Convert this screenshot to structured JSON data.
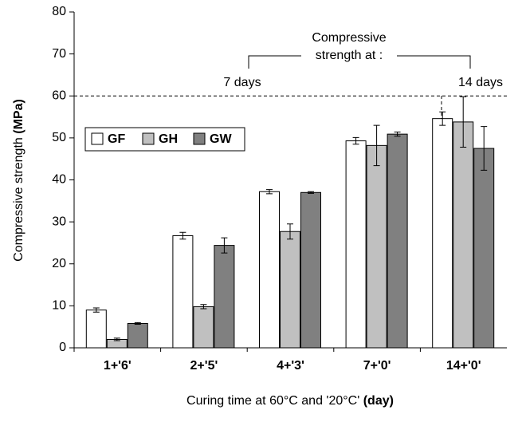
{
  "chart_data": {
    "type": "bar",
    "ylabel": "Compressive strength",
    "ylabel_unit": "(MPa)",
    "xlabel": "Curing time at 60°C and '20°C'",
    "xlabel_unit": "(day)",
    "categories": [
      "1+'6'",
      "2+'5'",
      "4+'3'",
      "7+'0'",
      "14+'0'"
    ],
    "series": [
      {
        "name": "GF",
        "color": "#ffffff",
        "values": [
          9,
          26.7,
          37.2,
          49.3,
          54.6
        ],
        "errors": [
          0.5,
          0.8,
          0.5,
          0.8,
          1.6
        ]
      },
      {
        "name": "GH",
        "color": "#c0c0c0",
        "values": [
          2,
          9.8,
          27.7,
          48.2,
          53.8
        ],
        "errors": [
          0.3,
          0.5,
          1.8,
          4.8,
          6
        ]
      },
      {
        "name": "GW",
        "color": "#808080",
        "values": [
          5.8,
          24.4,
          37,
          50.9,
          47.5
        ],
        "errors": [
          0.2,
          1.8,
          0.2,
          0.5,
          5.2
        ]
      }
    ],
    "ylim": [
      0,
      80
    ],
    "yticks": [
      0,
      10,
      20,
      30,
      40,
      50,
      60,
      70,
      80
    ],
    "reference_line": 60,
    "annotations": {
      "heading": [
        "Compressive",
        "strength at :"
      ],
      "left": "7 days",
      "right": "14 days"
    },
    "legend": "upper left"
  }
}
